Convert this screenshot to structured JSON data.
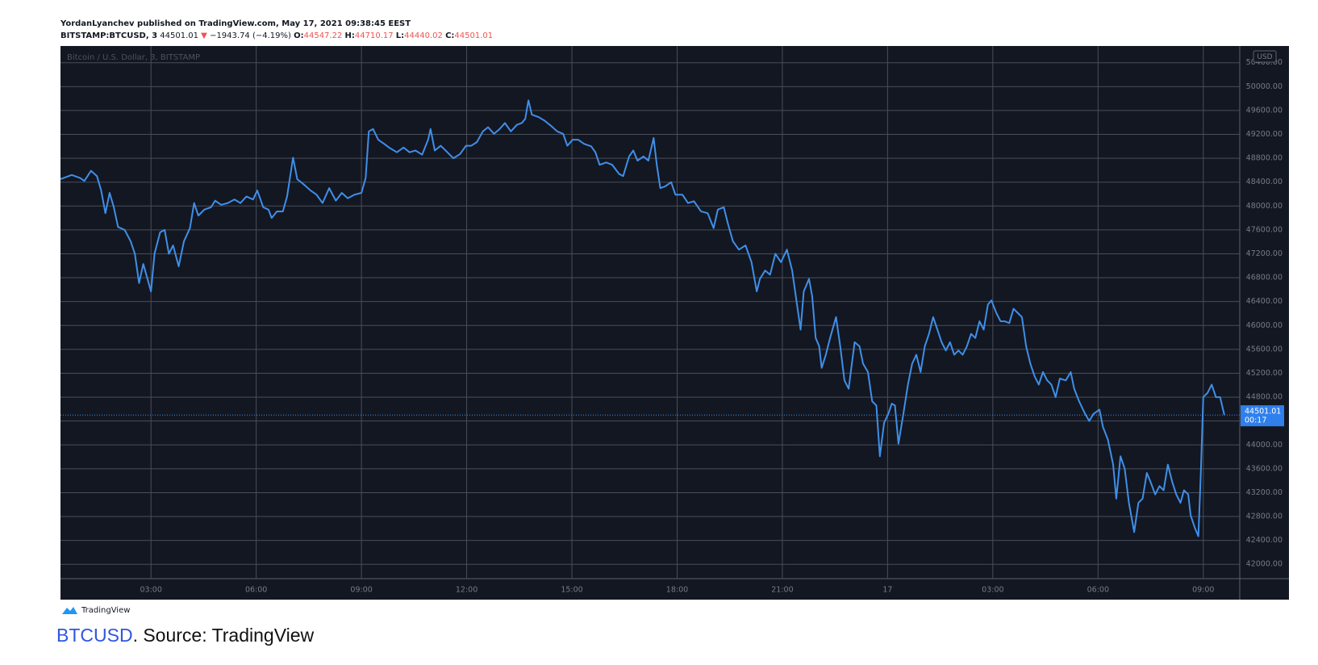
{
  "header": {
    "publisher": "YordanLyanchev published on TradingView.com, May 17, 2021 09:38:45 EEST",
    "symbol": "BITSTAMP:BTCUSD, 3",
    "price": "44501.01",
    "arrow": "▼",
    "change": "−1943.74 (−4.19%)",
    "open_label": "O:",
    "open": "44547.22",
    "high_label": "H:",
    "high": "44710.17",
    "low_label": "L:",
    "low": "44440.02",
    "close_label": "C:",
    "close": "44501.01"
  },
  "logo": "TradingView",
  "caption": {
    "link": "BTCUSD",
    "text": ". Source: TradingView"
  },
  "chart_data": {
    "type": "line",
    "title": "Bitcoin / U.S. Dollar, 3, BITSTAMP",
    "currency": "USD",
    "color": "#3f8fe8",
    "grid": true,
    "last_price": 44501.01,
    "countdown": "00:17",
    "xlim": [
      0.42,
      34.04
    ],
    "ylim": [
      41760,
      50680
    ],
    "xticks": [
      {
        "value": 3,
        "label": "03:00"
      },
      {
        "value": 6,
        "label": "06:00"
      },
      {
        "value": 9,
        "label": "09:00"
      },
      {
        "value": 12,
        "label": "12:00"
      },
      {
        "value": 15,
        "label": "15:00"
      },
      {
        "value": 18,
        "label": "18:00"
      },
      {
        "value": 21,
        "label": "21:00"
      },
      {
        "value": 24,
        "label": "17"
      },
      {
        "value": 27,
        "label": "03:00"
      },
      {
        "value": 30,
        "label": "06:00"
      },
      {
        "value": 33,
        "label": "09:00"
      }
    ],
    "yticks": [
      {
        "value": 42000,
        "label": "42000.00"
      },
      {
        "value": 42400,
        "label": "42400.00"
      },
      {
        "value": 42800,
        "label": "42800.00"
      },
      {
        "value": 43200,
        "label": "43200.00"
      },
      {
        "value": 43600,
        "label": "43600.00"
      },
      {
        "value": 44000,
        "label": "44000.00"
      },
      {
        "value": 44400,
        "label": "44400.00"
      },
      {
        "value": 44800,
        "label": "44800.00"
      },
      {
        "value": 45200,
        "label": "45200.00"
      },
      {
        "value": 45600,
        "label": "45600.00"
      },
      {
        "value": 46000,
        "label": "46000.00"
      },
      {
        "value": 46400,
        "label": "46400.00"
      },
      {
        "value": 46800,
        "label": "46800.00"
      },
      {
        "value": 47200,
        "label": "47200.00"
      },
      {
        "value": 47600,
        "label": "47600.00"
      },
      {
        "value": 48000,
        "label": "48000.00"
      },
      {
        "value": 48400,
        "label": "48400.00"
      },
      {
        "value": 48800,
        "label": "48800.00"
      },
      {
        "value": 49200,
        "label": "49200.00"
      },
      {
        "value": 49600,
        "label": "49600.00"
      },
      {
        "value": 50000,
        "label": "50000.00"
      },
      {
        "value": 50400,
        "label": "50400.00"
      }
    ],
    "x": [
      0.42,
      0.74,
      0.98,
      1.1,
      1.29,
      1.46,
      1.58,
      1.7,
      1.82,
      1.94,
      2.06,
      2.25,
      2.42,
      2.54,
      2.66,
      2.78,
      2.9,
      3.0,
      3.1,
      3.26,
      3.39,
      3.51,
      3.63,
      3.79,
      3.94,
      4.11,
      4.23,
      4.35,
      4.52,
      4.71,
      4.83,
      5.0,
      5.19,
      5.38,
      5.55,
      5.72,
      5.91,
      6.03,
      6.2,
      6.35,
      6.44,
      6.59,
      6.76,
      6.88,
      7.05,
      7.17,
      7.36,
      7.55,
      7.72,
      7.89,
      8.08,
      8.27,
      8.44,
      8.61,
      8.8,
      9.0,
      9.12,
      9.21,
      9.33,
      9.48,
      9.65,
      9.81,
      10.01,
      10.2,
      10.37,
      10.54,
      10.73,
      10.9,
      10.97,
      11.09,
      11.26,
      11.45,
      11.62,
      11.81,
      11.98,
      12.13,
      12.29,
      12.46,
      12.61,
      12.78,
      12.94,
      13.09,
      13.26,
      13.43,
      13.57,
      13.67,
      13.76,
      13.86,
      14.05,
      14.22,
      14.39,
      14.58,
      14.75,
      14.87,
      15.02,
      15.18,
      15.35,
      15.55,
      15.67,
      15.79,
      15.98,
      16.15,
      16.34,
      16.46,
      16.63,
      16.75,
      16.87,
      17.04,
      17.18,
      17.33,
      17.42,
      17.52,
      17.66,
      17.83,
      17.95,
      18.15,
      18.31,
      18.48,
      18.68,
      18.87,
      19.04,
      19.16,
      19.33,
      19.45,
      19.59,
      19.76,
      19.95,
      20.12,
      20.27,
      20.36,
      20.51,
      20.65,
      20.8,
      20.96,
      21.13,
      21.28,
      21.4,
      21.52,
      21.61,
      21.76,
      21.85,
      21.95,
      22.05,
      22.12,
      22.24,
      22.36,
      22.53,
      22.65,
      22.77,
      22.89,
      23.06,
      23.2,
      23.3,
      23.44,
      23.56,
      23.68,
      23.78,
      23.9,
      24.02,
      24.12,
      24.21,
      24.31,
      24.45,
      24.58,
      24.7,
      24.82,
      24.94,
      25.06,
      25.18,
      25.3,
      25.42,
      25.54,
      25.66,
      25.78,
      25.9,
      26.02,
      26.14,
      26.26,
      26.38,
      26.5,
      26.62,
      26.74,
      26.86,
      26.96,
      27.1,
      27.22,
      27.34,
      27.47,
      27.59,
      27.71,
      27.83,
      27.95,
      28.07,
      28.19,
      28.31,
      28.43,
      28.55,
      28.67,
      28.79,
      28.91,
      29.08,
      29.22,
      29.32,
      29.46,
      29.63,
      29.75,
      29.87,
      30.04,
      30.14,
      30.28,
      30.43,
      30.52,
      30.64,
      30.76,
      30.88,
      31.03,
      31.15,
      31.27,
      31.39,
      31.49,
      31.63,
      31.75,
      31.87,
      31.99,
      32.11,
      32.23,
      32.35,
      32.45,
      32.57,
      32.64,
      32.76,
      32.86,
      32.93,
      33.0,
      33.12,
      33.24,
      33.36,
      33.48,
      33.6
    ],
    "values": [
      48450,
      48520,
      48470,
      48420,
      48590,
      48500,
      48260,
      47880,
      48220,
      47980,
      47650,
      47600,
      47410,
      47200,
      46710,
      47030,
      46780,
      46570,
      47200,
      47560,
      47600,
      47200,
      47340,
      46990,
      47410,
      47630,
      48050,
      47840,
      47940,
      47980,
      48090,
      48020,
      48050,
      48110,
      48050,
      48160,
      48110,
      48260,
      47980,
      47940,
      47800,
      47910,
      47910,
      48160,
      48810,
      48450,
      48360,
      48260,
      48190,
      48050,
      48300,
      48090,
      48220,
      48130,
      48190,
      48220,
      48470,
      49250,
      49290,
      49110,
      49040,
      48970,
      48900,
      48980,
      48900,
      48930,
      48860,
      49110,
      49290,
      48930,
      49010,
      48900,
      48800,
      48870,
      49010,
      49010,
      49070,
      49250,
      49320,
      49210,
      49290,
      49390,
      49250,
      49360,
      49390,
      49460,
      49770,
      49530,
      49490,
      49430,
      49350,
      49250,
      49210,
      49010,
      49110,
      49110,
      49040,
      49000,
      48900,
      48690,
      48730,
      48690,
      48540,
      48500,
      48830,
      48930,
      48760,
      48830,
      48760,
      49140,
      48690,
      48300,
      48330,
      48400,
      48190,
      48190,
      48050,
      48080,
      47910,
      47880,
      47630,
      47940,
      47980,
      47700,
      47410,
      47270,
      47340,
      47060,
      46570,
      46780,
      46920,
      46850,
      47200,
      47060,
      47270,
      46920,
      46420,
      45930,
      46570,
      46780,
      46490,
      45790,
      45650,
      45290,
      45510,
      45790,
      46140,
      45650,
      45080,
      44940,
      45720,
      45650,
      45360,
      45220,
      44730,
      44660,
      43810,
      44370,
      44520,
      44690,
      44660,
      44020,
      44520,
      45010,
      45360,
      45510,
      45220,
      45650,
      45860,
      46140,
      45930,
      45720,
      45580,
      45720,
      45510,
      45580,
      45510,
      45650,
      45860,
      45790,
      46070,
      45930,
      46350,
      46420,
      46210,
      46070,
      46070,
      46040,
      46280,
      46210,
      46140,
      45650,
      45360,
      45150,
      45010,
      45220,
      45080,
      45010,
      44800,
      45110,
      45080,
      45220,
      44940,
      44730,
      44520,
      44400,
      44520,
      44590,
      44300,
      44090,
      43670,
      43100,
      43810,
      43600,
      43030,
      42540,
      43030,
      43100,
      43530,
      43390,
      43170,
      43310,
      43240,
      43670,
      43390,
      43170,
      43030,
      43240,
      43170,
      42820,
      42610,
      42470,
      43530,
      44800,
      44870,
      45010,
      44800,
      44800,
      44501.01
    ]
  }
}
